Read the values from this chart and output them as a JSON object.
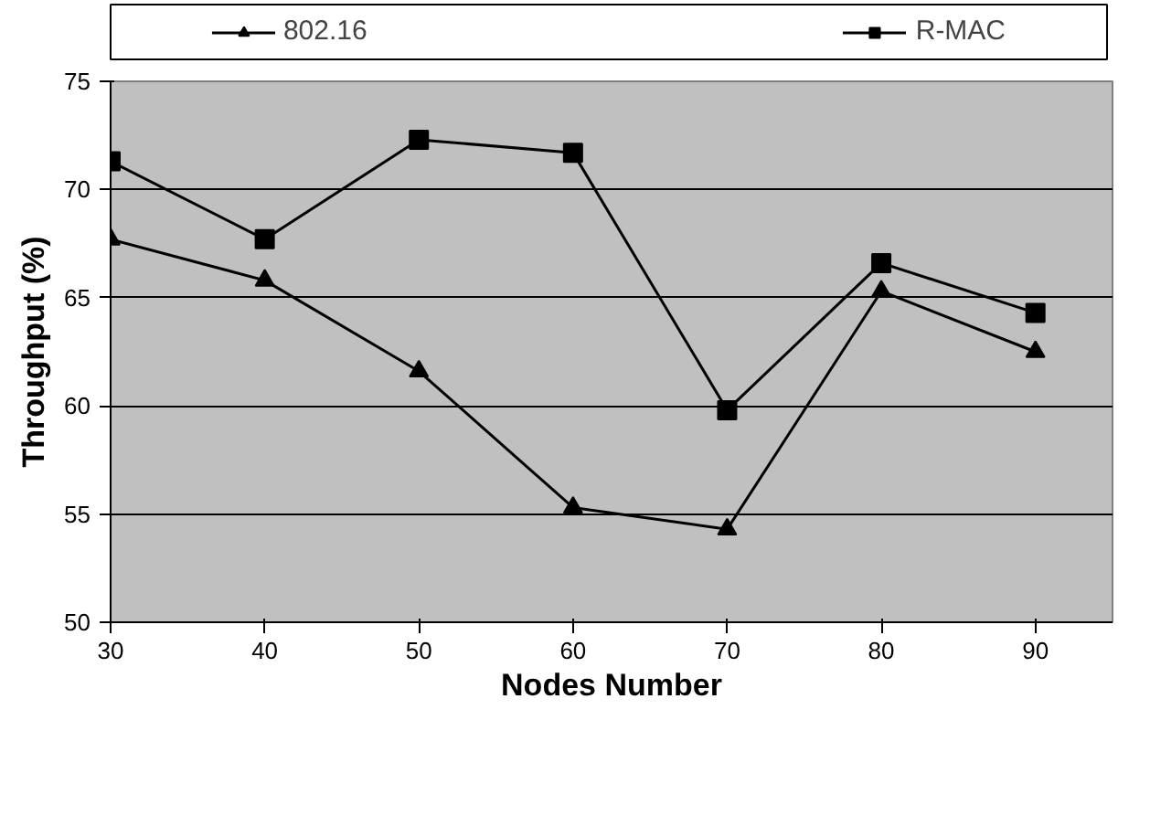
{
  "chart_data": {
    "type": "line",
    "xlabel": "Nodes Number",
    "ylabel": "Throughput (%)",
    "x": [
      30,
      40,
      50,
      60,
      70,
      80,
      90
    ],
    "series": [
      {
        "name": "802.16",
        "color": "#000000",
        "marker": "triangle",
        "values": [
          67.7,
          65.8,
          61.6,
          55.3,
          54.3,
          65.3,
          62.5
        ]
      },
      {
        "name": "R-MAC",
        "color": "#000000",
        "marker": "square",
        "values": [
          71.3,
          67.7,
          72.3,
          71.7,
          59.8,
          66.6,
          64.3
        ]
      }
    ],
    "xlim": [
      30,
      95
    ],
    "xticks": [
      30,
      40,
      50,
      60,
      70,
      80,
      90
    ],
    "ylim": [
      50,
      75
    ],
    "yticks": [
      50,
      55,
      60,
      65,
      70,
      75
    ],
    "grid": "y",
    "legend": "top",
    "line_style": "solid"
  }
}
